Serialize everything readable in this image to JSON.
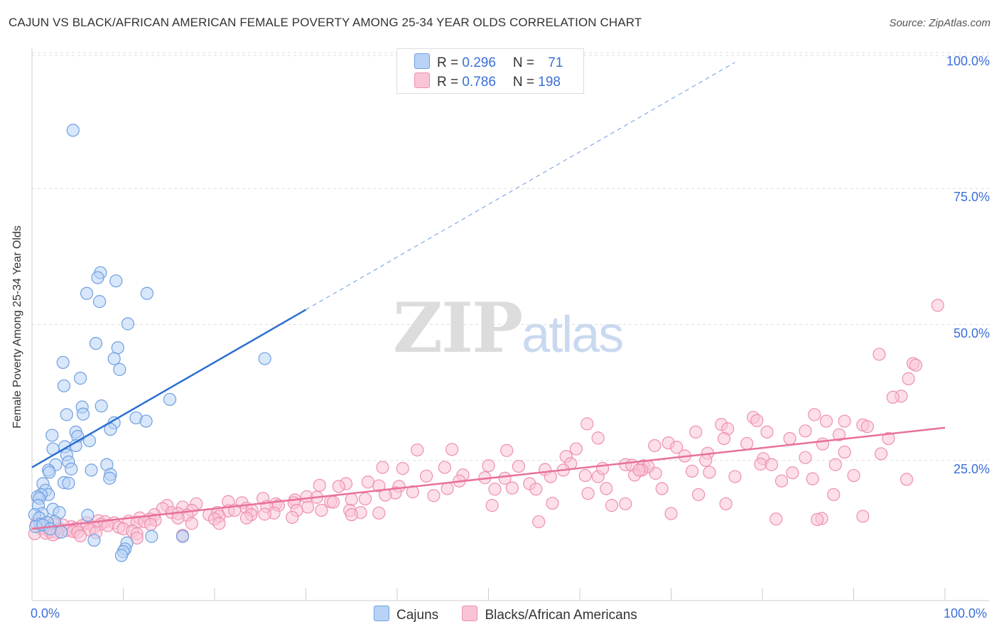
{
  "title": "CAJUN VS BLACK/AFRICAN AMERICAN FEMALE POVERTY AMONG 25-34 YEAR OLDS CORRELATION CHART",
  "source": "Source: ZipAtlas.com",
  "watermark": {
    "zip": "ZIP",
    "atlas": "atlas"
  },
  "colors": {
    "cajun_fill": "#b8d3f5",
    "cajun_stroke": "#6f9fe0",
    "cajun_line": "#2c6fd1",
    "black_fill": "#f9c4d6",
    "black_stroke": "#ee8fb0",
    "black_line": "#e8719b",
    "axis_text": "#3a6fd8",
    "grid": "#dddddd"
  },
  "legend": {
    "rows": [
      {
        "r_label": "R = ",
        "r_value": "0.296",
        "n_label": "N = ",
        "n_value": "71"
      },
      {
        "r_label": "R = ",
        "r_value": "0.786",
        "n_label": "N = ",
        "n_value": "198"
      }
    ]
  },
  "bottom_legend": {
    "items": [
      "Cajuns",
      "Blacks/African Americans"
    ]
  },
  "chart_data": {
    "type": "scatter",
    "title": "CAJUN VS BLACK/AFRICAN AMERICAN FEMALE POVERTY AMONG 25-34 YEAR OLDS CORRELATION CHART",
    "xlabel": "",
    "ylabel": "Female Poverty Among 25-34 Year Olds",
    "xlim": [
      0,
      100
    ],
    "ylim": [
      0,
      100
    ],
    "x_tick_labels": [
      "0.0%",
      "100.0%"
    ],
    "y_tick_labels": [
      {
        "value": 100,
        "label": "100.0%"
      },
      {
        "value": 75,
        "label": "75.0%"
      },
      {
        "value": 50,
        "label": "50.0%"
      },
      {
        "value": 25,
        "label": "25.0%"
      }
    ],
    "grid": "horizontal dashed",
    "legend_position": "top-center",
    "series": [
      {
        "name": "Cajuns",
        "trend": {
          "x0": 0,
          "y0": 24.5,
          "x1": 30,
          "y1": 53.5,
          "extend_to_x": 77,
          "extend_to_y": 99
        },
        "points": [
          [
            4.5,
            86.5
          ],
          [
            7.5,
            60.3
          ],
          [
            7.2,
            59.4
          ],
          [
            9.2,
            58.8
          ],
          [
            6.0,
            56.5
          ],
          [
            12.6,
            56.5
          ],
          [
            7.4,
            55.0
          ],
          [
            10.5,
            50.9
          ],
          [
            7.0,
            47.3
          ],
          [
            9.4,
            46.5
          ],
          [
            3.4,
            43.8
          ],
          [
            9.0,
            44.5
          ],
          [
            25.5,
            44.5
          ],
          [
            9.6,
            42.5
          ],
          [
            5.3,
            40.9
          ],
          [
            3.5,
            39.5
          ],
          [
            15.1,
            37.0
          ],
          [
            5.5,
            35.6
          ],
          [
            7.6,
            35.8
          ],
          [
            3.8,
            34.2
          ],
          [
            5.6,
            34.3
          ],
          [
            11.4,
            33.6
          ],
          [
            12.5,
            33.0
          ],
          [
            9.0,
            32.7
          ],
          [
            8.6,
            31.5
          ],
          [
            4.8,
            31.0
          ],
          [
            5.0,
            30.2
          ],
          [
            2.2,
            30.4
          ],
          [
            6.3,
            29.4
          ],
          [
            3.6,
            28.3
          ],
          [
            4.8,
            28.5
          ],
          [
            2.3,
            27.9
          ],
          [
            3.8,
            26.8
          ],
          [
            2.6,
            25.0
          ],
          [
            4.0,
            25.5
          ],
          [
            8.2,
            25.0
          ],
          [
            4.3,
            24.2
          ],
          [
            1.8,
            24.0
          ],
          [
            6.5,
            24.0
          ],
          [
            1.9,
            23.6
          ],
          [
            8.6,
            23.2
          ],
          [
            8.5,
            22.5
          ],
          [
            3.5,
            21.7
          ],
          [
            1.2,
            21.5
          ],
          [
            4.0,
            21.6
          ],
          [
            1.5,
            20.3
          ],
          [
            1.8,
            19.5
          ],
          [
            1.0,
            19.5
          ],
          [
            0.6,
            19.1
          ],
          [
            0.8,
            18.8
          ],
          [
            0.7,
            17.5
          ],
          [
            2.3,
            16.8
          ],
          [
            3.0,
            16.2
          ],
          [
            6.1,
            15.7
          ],
          [
            1.1,
            16.0
          ],
          [
            0.3,
            15.8
          ],
          [
            0.8,
            15.2
          ],
          [
            2.5,
            14.5
          ],
          [
            1.7,
            14.4
          ],
          [
            0.9,
            14.0
          ],
          [
            0.4,
            13.6
          ],
          [
            1.2,
            13.9
          ],
          [
            2.0,
            13.2
          ],
          [
            13.1,
            11.8
          ],
          [
            16.5,
            11.8
          ],
          [
            6.8,
            11.1
          ],
          [
            10.4,
            10.6
          ],
          [
            10.2,
            9.5
          ],
          [
            10.0,
            9.0
          ],
          [
            9.8,
            8.3
          ],
          [
            3.2,
            12.6
          ]
        ]
      },
      {
        "name": "Blacks/African Americans",
        "trend": {
          "x0": 0,
          "y0": 13.2,
          "x1": 100,
          "y1": 31.8
        },
        "points": [
          [
            99.2,
            54.3
          ],
          [
            92.8,
            45.3
          ],
          [
            96.5,
            43.6
          ],
          [
            96.8,
            43.3
          ],
          [
            96.0,
            40.8
          ],
          [
            95.2,
            37.6
          ],
          [
            94.3,
            37.4
          ],
          [
            85.7,
            34.2
          ],
          [
            79.0,
            33.7
          ],
          [
            79.4,
            33.1
          ],
          [
            60.8,
            32.5
          ],
          [
            75.5,
            32.4
          ],
          [
            91.0,
            32.3
          ],
          [
            87.0,
            33.0
          ],
          [
            89.0,
            33.0
          ],
          [
            91.5,
            32.0
          ],
          [
            76.2,
            31.6
          ],
          [
            72.7,
            31.0
          ],
          [
            84.7,
            31.2
          ],
          [
            80.5,
            31.0
          ],
          [
            88.4,
            30.5
          ],
          [
            93.8,
            29.8
          ],
          [
            75.8,
            29.8
          ],
          [
            83.0,
            29.8
          ],
          [
            62.0,
            29.9
          ],
          [
            69.7,
            29.0
          ],
          [
            78.3,
            28.9
          ],
          [
            86.6,
            28.8
          ],
          [
            68.2,
            28.5
          ],
          [
            70.6,
            28.2
          ],
          [
            52.0,
            27.6
          ],
          [
            59.6,
            27.9
          ],
          [
            46.0,
            27.8
          ],
          [
            42.2,
            27.7
          ],
          [
            89.0,
            27.3
          ],
          [
            93.0,
            27.0
          ],
          [
            74.0,
            27.1
          ],
          [
            58.5,
            26.5
          ],
          [
            71.5,
            26.6
          ],
          [
            80.1,
            26.1
          ],
          [
            84.7,
            26.3
          ],
          [
            73.8,
            25.8
          ],
          [
            59.0,
            25.2
          ],
          [
            79.8,
            25.1
          ],
          [
            65.0,
            25.0
          ],
          [
            81.0,
            25.0
          ],
          [
            88.0,
            25.0
          ],
          [
            65.7,
            24.9
          ],
          [
            67.0,
            24.8
          ],
          [
            67.5,
            24.6
          ],
          [
            50.0,
            24.8
          ],
          [
            53.3,
            24.7
          ],
          [
            38.4,
            24.5
          ],
          [
            40.6,
            24.3
          ],
          [
            45.2,
            24.5
          ],
          [
            56.2,
            24.1
          ],
          [
            66.8,
            24.0
          ],
          [
            58.2,
            24.0
          ],
          [
            72.3,
            23.8
          ],
          [
            74.2,
            23.6
          ],
          [
            83.3,
            23.5
          ],
          [
            60.6,
            23.0
          ],
          [
            68.3,
            23.4
          ],
          [
            90.0,
            23.0
          ],
          [
            62.0,
            22.8
          ],
          [
            77.0,
            22.8
          ],
          [
            56.8,
            22.8
          ],
          [
            51.8,
            22.5
          ],
          [
            85.5,
            22.4
          ],
          [
            82.1,
            22.0
          ],
          [
            95.8,
            22.3
          ],
          [
            49.6,
            22.6
          ],
          [
            43.2,
            22.9
          ],
          [
            47.2,
            23.1
          ],
          [
            46.8,
            22.0
          ],
          [
            36.8,
            21.8
          ],
          [
            34.4,
            21.5
          ],
          [
            31.5,
            21.2
          ],
          [
            33.6,
            21.0
          ],
          [
            38.0,
            21.1
          ],
          [
            40.2,
            21.0
          ],
          [
            45.5,
            20.6
          ],
          [
            52.6,
            20.7
          ],
          [
            62.9,
            20.6
          ],
          [
            54.5,
            21.5
          ],
          [
            55.2,
            20.5
          ],
          [
            69.0,
            20.6
          ],
          [
            60.9,
            19.7
          ],
          [
            73.0,
            19.5
          ],
          [
            87.8,
            19.5
          ],
          [
            41.7,
            20.0
          ],
          [
            39.8,
            19.8
          ],
          [
            38.7,
            19.4
          ],
          [
            44.0,
            19.3
          ],
          [
            30.1,
            19.1
          ],
          [
            31.2,
            19.0
          ],
          [
            35.0,
            18.6
          ],
          [
            36.5,
            18.7
          ],
          [
            28.8,
            18.5
          ],
          [
            32.7,
            18.2
          ],
          [
            33.0,
            18.1
          ],
          [
            25.3,
            18.8
          ],
          [
            21.5,
            18.2
          ],
          [
            18.0,
            17.8
          ],
          [
            14.8,
            17.5
          ],
          [
            23.0,
            18.0
          ],
          [
            26.7,
            17.8
          ],
          [
            28.7,
            18.0
          ],
          [
            16.5,
            17.2
          ],
          [
            14.3,
            16.9
          ],
          [
            17.5,
            16.6
          ],
          [
            21.5,
            16.5
          ],
          [
            23.5,
            17.0
          ],
          [
            25.7,
            17.3
          ],
          [
            27.0,
            17.5
          ],
          [
            30.2,
            17.2
          ],
          [
            31.7,
            16.6
          ],
          [
            34.8,
            16.6
          ],
          [
            26.5,
            16.1
          ],
          [
            36.0,
            16.2
          ],
          [
            38.0,
            16.1
          ],
          [
            13.4,
            15.8
          ],
          [
            15.3,
            16.2
          ],
          [
            16.0,
            16.0
          ],
          [
            17.0,
            15.7
          ],
          [
            19.4,
            15.8
          ],
          [
            20.3,
            16.2
          ],
          [
            22.2,
            16.6
          ],
          [
            24.1,
            16.6
          ],
          [
            25.5,
            15.9
          ],
          [
            29.0,
            16.6
          ],
          [
            24.0,
            15.8
          ],
          [
            20.5,
            15.5
          ],
          [
            23.5,
            15.2
          ],
          [
            11.8,
            15.2
          ],
          [
            12.9,
            15.0
          ],
          [
            16.0,
            15.2
          ],
          [
            20.0,
            15.0
          ],
          [
            28.5,
            15.3
          ],
          [
            35.0,
            15.8
          ],
          [
            13.5,
            14.8
          ],
          [
            10.6,
            14.6
          ],
          [
            11.5,
            14.4
          ],
          [
            12.3,
            14.5
          ],
          [
            7.3,
            14.7
          ],
          [
            8.0,
            14.5
          ],
          [
            9.0,
            14.3
          ],
          [
            6.0,
            14.3
          ],
          [
            13.0,
            14.0
          ],
          [
            17.5,
            14.2
          ],
          [
            20.5,
            14.2
          ],
          [
            7.5,
            14.0
          ],
          [
            8.3,
            13.8
          ],
          [
            9.5,
            13.5
          ],
          [
            5.5,
            13.8
          ],
          [
            6.8,
            13.5
          ],
          [
            4.3,
            13.6
          ],
          [
            3.4,
            13.9
          ],
          [
            2.5,
            14.0
          ],
          [
            1.6,
            14.4
          ],
          [
            0.5,
            14.1
          ],
          [
            3.0,
            13.2
          ],
          [
            4.8,
            13.3
          ],
          [
            6.3,
            13.0
          ],
          [
            1.0,
            13.2
          ],
          [
            1.8,
            13.0
          ],
          [
            2.0,
            12.6
          ],
          [
            3.8,
            12.9
          ],
          [
            4.5,
            12.7
          ],
          [
            5.0,
            12.6
          ],
          [
            2.8,
            12.5
          ],
          [
            7.0,
            12.5
          ],
          [
            10.0,
            13.2
          ],
          [
            11.0,
            12.8
          ],
          [
            11.5,
            12.3
          ],
          [
            11.5,
            11.5
          ],
          [
            0.3,
            12.3
          ],
          [
            1.5,
            12.4
          ],
          [
            2.3,
            12.1
          ],
          [
            5.3,
            11.9
          ],
          [
            16.5,
            12.0
          ],
          [
            55.5,
            14.5
          ],
          [
            70.0,
            16.0
          ],
          [
            81.5,
            15.0
          ],
          [
            86.5,
            15.1
          ],
          [
            86.0,
            14.9
          ],
          [
            91.0,
            15.5
          ],
          [
            65.0,
            17.8
          ],
          [
            50.7,
            20.5
          ],
          [
            76.0,
            17.8
          ],
          [
            50.4,
            17.5
          ],
          [
            62.5,
            24.3
          ],
          [
            57.0,
            17.9
          ],
          [
            63.5,
            17.5
          ],
          [
            66.0,
            23.1
          ],
          [
            66.5,
            24.0
          ]
        ]
      }
    ]
  }
}
